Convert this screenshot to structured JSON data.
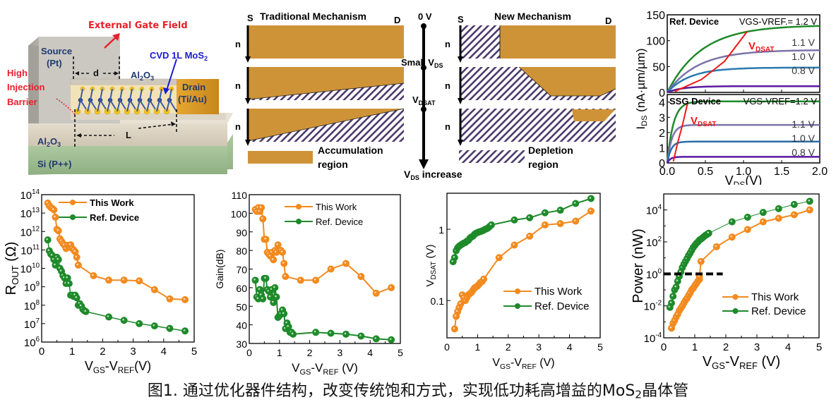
{
  "device_schematic": {
    "labels": {
      "external_gate_field": "External Gate Field",
      "source": "Source",
      "source_metal": "(Pt)",
      "high": "High",
      "injection": "Injection",
      "barrier": "Barrier",
      "d": "d",
      "al2o3_top": "Al2O3",
      "cvd": "CVD 1L MoS",
      "cvd_sub": "2",
      "drain": "Drain",
      "drain_metal": "(Ti/Au)",
      "L": "L",
      "al2o3_bottom": "Al2O3",
      "si": "Si (P++)"
    },
    "colors": {
      "red": "#e8202a",
      "blue": "#1a1ad0",
      "navy": "#1f3a6e"
    }
  },
  "mechanism": {
    "traditional_title": "Traditional Mechanism",
    "new_title": "New Mechanism",
    "S": "S",
    "D": "D",
    "n": "n",
    "v0": "0 V",
    "small_vds": "Small V",
    "small_vds_sub": "DS",
    "vdsat": "V",
    "vdsat_sub": "DSAT",
    "vds_increase": "V",
    "vds_increase_sub": "DS",
    "vds_increase_suffix": " increase",
    "accumulation_1": "Accumulation",
    "accumulation_2": "region",
    "depletion_1": "Depletion",
    "depletion_2": "region",
    "colors": {
      "accumulation": "#cf9337",
      "depletion_stripe": "#4b3a6b"
    }
  },
  "chart_data": [
    {
      "id": "iv-ref",
      "type": "line",
      "title": "Ref. Device",
      "legend_header": "VGS-VREF.= 1.2 V",
      "xlabel": "VDS(V)",
      "ylabel": "IDS (nA·µm/µm)",
      "xlim": [
        0,
        2.0
      ],
      "ylim": [
        0,
        150
      ],
      "yticks": [
        0,
        50,
        100,
        150
      ],
      "series": [
        {
          "name": "1.2 V",
          "color": "#1e8a2a",
          "saturation": 130,
          "knee": 0.45
        },
        {
          "name": "1.1 V",
          "color": "#7a74a8",
          "saturation": 82,
          "knee": 0.4
        },
        {
          "name": "1.0 V",
          "color": "#2a7ab0",
          "saturation": 48,
          "knee": 0.3
        },
        {
          "name": "0.8 V",
          "color": "#5a1aa0",
          "saturation": 12,
          "knee": 0.2
        }
      ],
      "curve_labels": [
        "1.1 V",
        "1.0 V",
        "0.8 V"
      ],
      "vdsat_label": "VDSAT",
      "vdsat_points": [
        [
          0.1,
          2
        ],
        [
          0.45,
          25
        ],
        [
          0.75,
          60
        ],
        [
          1.05,
          118
        ]
      ]
    },
    {
      "id": "iv-ssg",
      "type": "line",
      "title": "SSG Device",
      "legend_header": "VGS-VREF=1.2 V",
      "xlabel": "VDS(V)",
      "xlim": [
        0,
        2.0
      ],
      "ylim": [
        0,
        4.5
      ],
      "xticks": [
        0.0,
        0.5,
        1.0,
        1.5,
        2.0
      ],
      "yticks": [
        0,
        1,
        2,
        3,
        4
      ],
      "series": [
        {
          "name": "1.2 V",
          "color": "#1e8a2a",
          "saturation": 4.05,
          "knee": 0.08
        },
        {
          "name": "1.1 V",
          "color": "#7a74a8",
          "saturation": 2.5,
          "knee": 0.06
        },
        {
          "name": "1.0 V",
          "color": "#2a6ea8",
          "saturation": 1.4,
          "knee": 0.05
        },
        {
          "name": "0.8 V",
          "color": "#5a1aa0",
          "saturation": 0.4,
          "knee": 0.04
        }
      ],
      "curve_labels": [
        "1.1 V",
        "1.0 V",
        "0.8 V"
      ],
      "vdsat_label": "VDSAT",
      "vdsat_points": [
        [
          0.08,
          0.1
        ],
        [
          0.14,
          1.4
        ],
        [
          0.2,
          2.5
        ],
        [
          0.27,
          4.0
        ]
      ]
    },
    {
      "id": "rout",
      "type": "line",
      "yscale": "log",
      "xlabel": "VGS-VREF(V)",
      "ylabel": "ROUT (Ω)",
      "xlim": [
        0,
        5
      ],
      "ylim_exp": [
        6,
        14
      ],
      "xticks": [
        0,
        1,
        2,
        3,
        4,
        5
      ],
      "legend": "top-center",
      "series": [
        {
          "name": "This Work",
          "color": "#f28a1e",
          "x": [
            0.2,
            0.25,
            0.3,
            0.35,
            0.4,
            0.45,
            0.5,
            0.55,
            0.6,
            0.65,
            0.7,
            0.75,
            0.8,
            0.85,
            0.9,
            0.95,
            1.0,
            1.05,
            1.1,
            1.15,
            1.2,
            1.7,
            2.2,
            2.7,
            3.2,
            3.7,
            4.2,
            4.7
          ],
          "y": [
            35000000000000.0,
            25000000000000.0,
            20000000000000.0,
            18000000000000.0,
            15000000000000.0,
            6000000000000.0,
            1300000000000.0,
            1100000000000.0,
            400000000000.0,
            300000000000.0,
            220000000000.0,
            180000000000.0,
            120000000000.0,
            180000000000.0,
            150000000000.0,
            190000000000.0,
            120000000000.0,
            100000000000.0,
            80000000000.0,
            40000000000.0,
            15000000000.0,
            4000000000.0,
            2300000000.0,
            2300000000.0,
            2100000000.0,
            700000000.0,
            220000000.0,
            200000000.0
          ]
        },
        {
          "name": "Ref. Device",
          "color": "#1e8a2a",
          "x": [
            0.2,
            0.25,
            0.3,
            0.35,
            0.4,
            0.45,
            0.5,
            0.55,
            0.6,
            0.65,
            0.7,
            0.75,
            0.8,
            0.85,
            0.9,
            0.95,
            1.0,
            1.05,
            1.1,
            1.15,
            1.2,
            1.25,
            1.3,
            1.35,
            1.4,
            1.45,
            2.2,
            2.7,
            3.2,
            3.7,
            4.2,
            4.7
          ],
          "y": [
            350000000000.0,
            90000000000.0,
            60000000000.0,
            50000000000.0,
            30000000000.0,
            15000000000.0,
            40000000000.0,
            30000000000.0,
            10000000000.0,
            7000000000.0,
            4000000000.0,
            3000000000.0,
            1500000000.0,
            3000000000.0,
            1500000000.0,
            350000000.0,
            350000000.0,
            300000000.0,
            350000000.0,
            250000000.0,
            100000000.0,
            120000000.0,
            90000000.0,
            60000000.0,
            50000000.0,
            45000000.0,
            23000000.0,
            15000000.0,
            10000000.0,
            7500000.0,
            5500000.0,
            4000000.0
          ]
        }
      ]
    },
    {
      "id": "gain",
      "type": "line",
      "xlabel": "VGS-VREF (V)",
      "ylabel": "Gain(dB)",
      "xlim": [
        0,
        5
      ],
      "ylim": [
        30,
        110
      ],
      "xticks": [
        0,
        1,
        2,
        3,
        4,
        5
      ],
      "yticks": [
        30,
        40,
        50,
        60,
        70,
        80,
        90,
        100,
        110
      ],
      "legend": "top-center",
      "series": [
        {
          "name": "This Work",
          "color": "#f28a1e",
          "x": [
            0.2,
            0.25,
            0.3,
            0.35,
            0.4,
            0.45,
            0.5,
            0.55,
            0.6,
            0.65,
            0.7,
            0.75,
            0.8,
            0.85,
            0.9,
            0.95,
            1.0,
            1.05,
            1.1,
            1.15,
            1.2,
            1.7,
            2.2,
            2.7,
            3.2,
            3.7,
            4.2,
            4.7
          ],
          "y": [
            102,
            101,
            103,
            101,
            103,
            97,
            86,
            86,
            79,
            78,
            77,
            79,
            75,
            80,
            79,
            83,
            80,
            80,
            79,
            73,
            66,
            64,
            64,
            70,
            73,
            66,
            57,
            60
          ]
        },
        {
          "name": "Ref. Device",
          "color": "#1e8a2a",
          "x": [
            0.2,
            0.25,
            0.3,
            0.35,
            0.4,
            0.45,
            0.5,
            0.55,
            0.6,
            0.65,
            0.7,
            0.75,
            0.8,
            0.85,
            0.9,
            0.95,
            1.0,
            1.05,
            1.1,
            1.15,
            1.2,
            1.25,
            1.3,
            1.35,
            1.4,
            1.45,
            2.2,
            2.7,
            3.2,
            3.7,
            4.2,
            4.7
          ],
          "y": [
            64,
            55,
            54,
            59,
            56,
            54,
            65,
            65,
            59,
            58,
            55,
            59,
            52,
            60,
            55,
            44,
            45,
            46,
            48,
            46,
            38,
            41,
            39,
            36,
            36,
            35,
            36,
            35.5,
            35,
            34,
            32.5,
            32
          ]
        }
      ]
    },
    {
      "id": "vdsat",
      "type": "line",
      "yscale": "log",
      "xlabel": "VGS-VREF (V)",
      "ylabel": "VDSAT (V)",
      "xlim": [
        0,
        5
      ],
      "ylim": [
        0.03,
        3.2
      ],
      "xticks": [
        0,
        1,
        2,
        3,
        4,
        5
      ],
      "yticks": [
        0.1,
        1
      ],
      "legend": "bottom-right",
      "series": [
        {
          "name": "This Work",
          "color": "#f28a1e",
          "x": [
            0.25,
            0.3,
            0.35,
            0.4,
            0.45,
            0.5,
            0.55,
            0.6,
            0.65,
            0.7,
            0.75,
            0.8,
            0.85,
            0.9,
            0.95,
            1.0,
            1.05,
            1.1,
            1.15,
            1.2,
            1.7,
            2.2,
            2.7,
            3.2,
            3.7,
            4.2,
            4.7
          ],
          "y": [
            0.04,
            0.06,
            0.07,
            0.08,
            0.09,
            0.12,
            0.11,
            0.1,
            0.11,
            0.12,
            0.125,
            0.13,
            0.14,
            0.15,
            0.155,
            0.16,
            0.17,
            0.18,
            0.185,
            0.2,
            0.4,
            0.6,
            0.8,
            1.15,
            1.2,
            1.3,
            1.8
          ]
        },
        {
          "name": "Ref. Device",
          "color": "#1e8a2a",
          "x": [
            0.2,
            0.25,
            0.3,
            0.35,
            0.4,
            0.45,
            0.5,
            0.55,
            0.6,
            0.65,
            0.7,
            0.75,
            0.8,
            0.85,
            0.9,
            0.95,
            1.0,
            1.05,
            1.1,
            1.15,
            1.2,
            1.25,
            1.3,
            1.35,
            1.4,
            1.45,
            2.2,
            2.7,
            3.2,
            3.7,
            4.2,
            4.7
          ],
          "y": [
            0.35,
            0.4,
            0.5,
            0.55,
            0.58,
            0.6,
            0.62,
            0.64,
            0.65,
            0.68,
            0.7,
            0.75,
            0.78,
            0.8,
            0.85,
            0.88,
            0.9,
            0.92,
            0.93,
            0.95,
            0.97,
            1.0,
            1.02,
            1.05,
            1.1,
            1.15,
            1.35,
            1.45,
            1.7,
            1.85,
            2.3,
            2.7
          ]
        }
      ]
    },
    {
      "id": "power",
      "type": "line",
      "yscale": "log",
      "xlabel": "VGS-VREF (V)",
      "ylabel": "Power (nW)",
      "xlim": [
        0,
        5
      ],
      "ylim_exp": [
        -4,
        5
      ],
      "xticks": [
        0,
        1,
        2,
        3,
        4,
        5
      ],
      "legend": "bottom-right",
      "reference_line": {
        "y": 1,
        "x_range": [
          0,
          1.9
        ],
        "style": "dashed"
      },
      "series": [
        {
          "name": "This Work",
          "color": "#f28a1e",
          "x": [
            0.25,
            0.3,
            0.35,
            0.4,
            0.45,
            0.5,
            0.55,
            0.6,
            0.65,
            0.7,
            0.75,
            0.8,
            0.85,
            0.9,
            0.95,
            1.0,
            1.05,
            1.1,
            1.15,
            1.15,
            1.2,
            1.7,
            2.2,
            2.7,
            3.2,
            3.7,
            4.2,
            4.7
          ],
          "y": [
            0.0004,
            0.0008,
            0.0012,
            0.002,
            0.003,
            0.005,
            0.007,
            0.01,
            0.015,
            0.022,
            0.03,
            0.045,
            0.065,
            0.1,
            0.13,
            0.18,
            0.25,
            0.35,
            0.45,
            0.7,
            6,
            50,
            200,
            600,
            1800,
            3000,
            5000,
            10000
          ]
        },
        {
          "name": "Ref. Device",
          "color": "#1e8a2a",
          "x": [
            0.2,
            0.25,
            0.3,
            0.35,
            0.4,
            0.45,
            0.5,
            0.55,
            0.6,
            0.65,
            0.7,
            0.75,
            0.8,
            0.85,
            0.9,
            0.95,
            1.0,
            1.05,
            1.1,
            1.15,
            1.2,
            1.25,
            1.3,
            1.35,
            1.4,
            1.45,
            2.2,
            2.7,
            3.2,
            3.7,
            4.2,
            4.7
          ],
          "y": [
            0.008,
            0.015,
            0.04,
            0.1,
            0.15,
            0.35,
            0.7,
            1.3,
            2.5,
            4,
            6,
            9,
            14,
            20,
            30,
            45,
            60,
            80,
            100,
            130,
            150,
            180,
            220,
            260,
            300,
            350,
            1800,
            3500,
            7000,
            12000,
            22000,
            35000
          ]
        }
      ]
    }
  ],
  "caption": {
    "prefix": "图1. 通过优化器件结构，改变传统饱和方式，实现低功耗高增益的MoS",
    "sub": "2",
    "suffix": "晶体管"
  }
}
